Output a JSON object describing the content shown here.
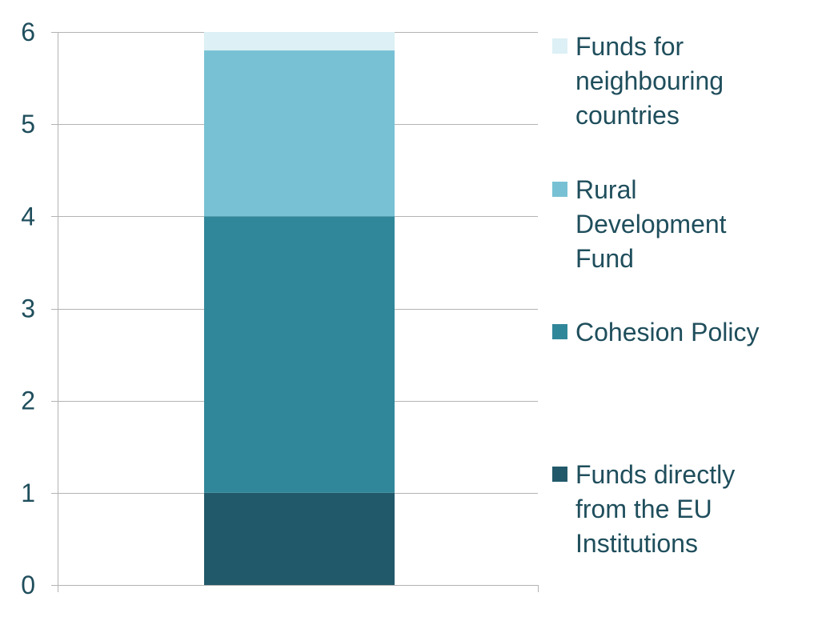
{
  "chart_data": {
    "type": "bar",
    "stacked": true,
    "categories": [
      ""
    ],
    "ylim": [
      0,
      6
    ],
    "yticks": [
      0,
      1,
      2,
      3,
      4,
      5,
      6
    ],
    "grid": true,
    "legend_position": "right",
    "series": [
      {
        "name": "Funds directly from the EU Institutions",
        "values": [
          1.0
        ],
        "color": "#22596a",
        "legend_lines": [
          "Funds directly",
          "from the EU",
          "Institutions"
        ]
      },
      {
        "name": "Cohesion Policy",
        "values": [
          3.0
        ],
        "color": "#31879a",
        "legend_lines": [
          "Cohesion Policy"
        ]
      },
      {
        "name": "Rural Development Fund",
        "values": [
          1.8
        ],
        "color": "#78c1d4",
        "legend_lines": [
          "Rural",
          "Development",
          "Fund"
        ]
      },
      {
        "name": "Funds for neighbouring countries",
        "values": [
          0.2
        ],
        "color": "#dcf0f5",
        "legend_lines": [
          "Funds for",
          "neighbouring",
          "countries"
        ]
      }
    ]
  }
}
